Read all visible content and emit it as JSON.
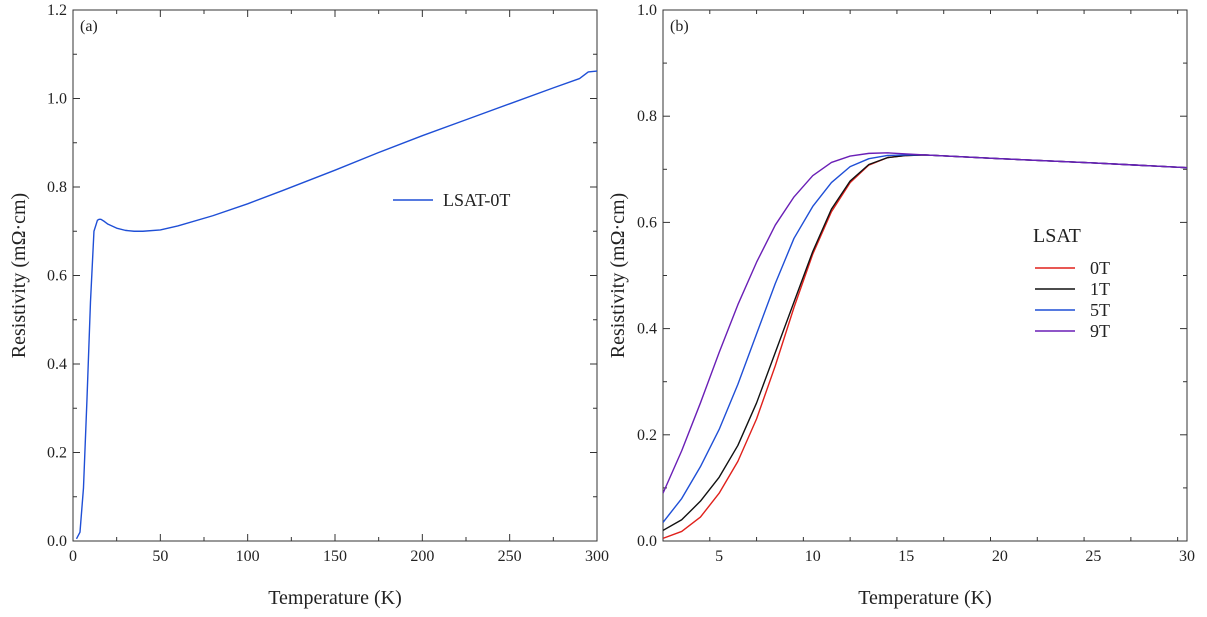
{
  "chart_data": [
    {
      "type": "line",
      "panel_label": "(a)",
      "xlabel": "Temperature (K)",
      "ylabel": "Resistivity (mΩ·cm)",
      "xlim": [
        0,
        300
      ],
      "ylim": [
        0,
        1.2
      ],
      "xticks": [
        0,
        50,
        100,
        150,
        200,
        250,
        300
      ],
      "xtick_labels": [
        "0",
        "50",
        "100",
        "150",
        "200",
        "250",
        "300"
      ],
      "yticks": [
        0,
        0.2,
        0.4,
        0.6,
        0.8,
        1.0,
        1.2
      ],
      "ytick_labels": [
        "0.0",
        "0.2",
        "0.4",
        "0.6",
        "0.8",
        "1.0",
        "1.2"
      ],
      "legend_position": "upper-right",
      "series": [
        {
          "name": "LSAT-0T",
          "color": "#1f4fd6",
          "x": [
            2,
            4,
            6,
            8,
            10,
            12,
            14,
            15,
            16,
            18,
            20,
            25,
            30,
            35,
            40,
            50,
            60,
            80,
            100,
            120,
            150,
            175,
            200,
            225,
            250,
            275,
            290,
            295,
            300
          ],
          "y": [
            0.005,
            0.02,
            0.12,
            0.32,
            0.54,
            0.7,
            0.725,
            0.727,
            0.727,
            0.722,
            0.716,
            0.707,
            0.702,
            0.7,
            0.7,
            0.703,
            0.712,
            0.735,
            0.762,
            0.792,
            0.838,
            0.878,
            0.916,
            0.952,
            0.988,
            1.024,
            1.045,
            1.06,
            1.062
          ]
        }
      ]
    },
    {
      "type": "line",
      "panel_label": "(b)",
      "xlabel": "Temperature (K)",
      "ylabel": "Resistivity (mΩ·cm)",
      "xlim": [
        2,
        30
      ],
      "ylim": [
        0,
        1.0
      ],
      "xticks": [
        5,
        10,
        15,
        20,
        25,
        30
      ],
      "xtick_labels": [
        "5",
        "10",
        "15",
        "20",
        "25",
        "30"
      ],
      "yticks": [
        0,
        0.2,
        0.4,
        0.6,
        0.8,
        1.0
      ],
      "ytick_labels": [
        "0.0",
        "0.2",
        "0.4",
        "0.6",
        "0.8",
        "1.0"
      ],
      "legend_title": "LSAT",
      "legend_position": "center-right",
      "series": [
        {
          "name": "0T",
          "color": "#e0201b",
          "x": [
            2,
            3,
            4,
            5,
            6,
            7,
            8,
            9,
            10,
            11,
            12,
            13,
            14,
            15,
            16,
            20,
            25,
            30
          ],
          "y": [
            0.005,
            0.018,
            0.045,
            0.09,
            0.15,
            0.23,
            0.33,
            0.44,
            0.54,
            0.62,
            0.675,
            0.708,
            0.722,
            0.726,
            0.727,
            0.72,
            0.712,
            0.703
          ]
        },
        {
          "name": "1T",
          "color": "#111111",
          "x": [
            2,
            3,
            4,
            5,
            6,
            7,
            8,
            9,
            10,
            11,
            12,
            13,
            14,
            15,
            16,
            20,
            25,
            30
          ],
          "y": [
            0.02,
            0.04,
            0.075,
            0.12,
            0.18,
            0.26,
            0.355,
            0.45,
            0.545,
            0.625,
            0.678,
            0.709,
            0.722,
            0.726,
            0.727,
            0.72,
            0.712,
            0.703
          ]
        },
        {
          "name": "5T",
          "color": "#1f4fd6",
          "x": [
            2,
            3,
            4,
            5,
            6,
            7,
            8,
            9,
            10,
            11,
            12,
            13,
            14,
            15,
            16,
            20,
            25,
            30
          ],
          "y": [
            0.035,
            0.08,
            0.14,
            0.21,
            0.295,
            0.39,
            0.485,
            0.57,
            0.63,
            0.675,
            0.705,
            0.72,
            0.726,
            0.727,
            0.727,
            0.72,
            0.712,
            0.703
          ]
        },
        {
          "name": "9T",
          "color": "#6a1fb6",
          "x": [
            2,
            3,
            4,
            5,
            6,
            7,
            8,
            9,
            10,
            11,
            12,
            13,
            14,
            15,
            16,
            20,
            25,
            30
          ],
          "y": [
            0.09,
            0.17,
            0.26,
            0.355,
            0.445,
            0.525,
            0.595,
            0.648,
            0.688,
            0.713,
            0.725,
            0.73,
            0.731,
            0.729,
            0.727,
            0.72,
            0.712,
            0.703
          ]
        }
      ]
    }
  ]
}
